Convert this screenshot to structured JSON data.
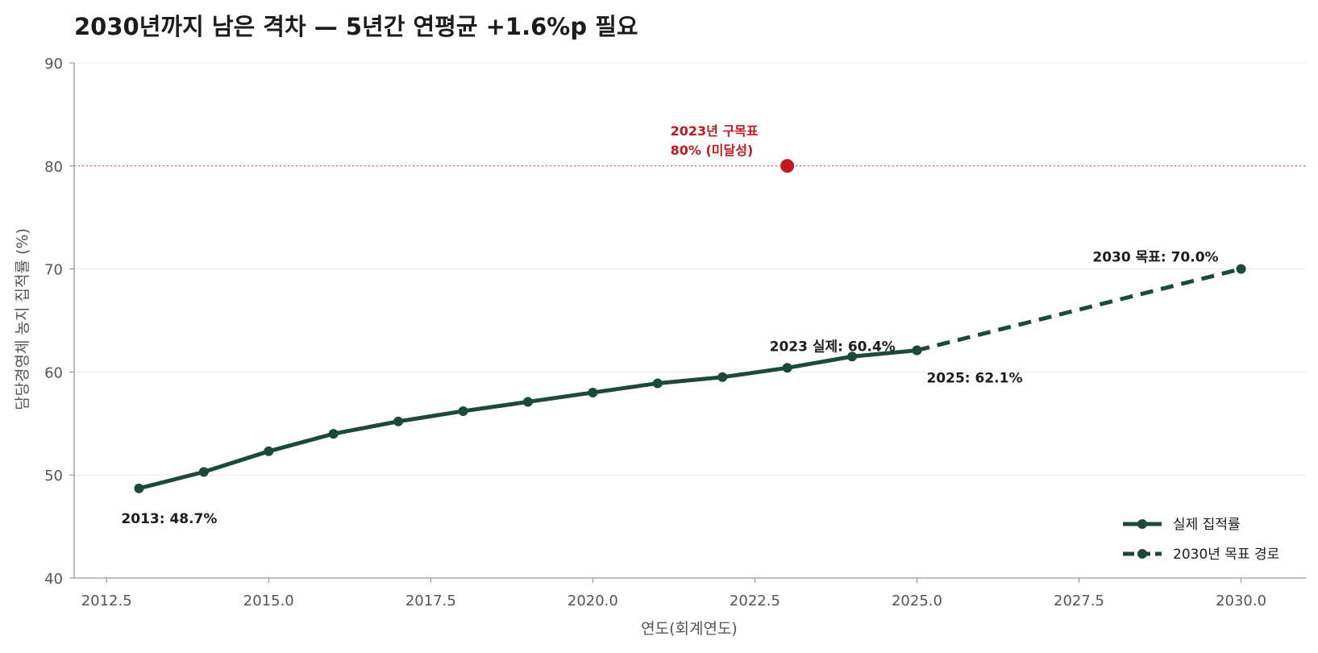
{
  "chart_data": {
    "type": "line",
    "title": "2030년까지 남은 격차 — 5년간 연평균 +1.6%p 필요",
    "xlabel": "연도(회계연도)",
    "ylabel": "담당경영체 농지 집적률 (%)",
    "xlim": [
      2012.0,
      2031.0
    ],
    "ylim": [
      40,
      90
    ],
    "xticks": [
      2012.5,
      2015.0,
      2017.5,
      2020.0,
      2022.5,
      2025.0,
      2027.5,
      2030.0
    ],
    "xtick_labels": [
      "2012.5",
      "2015.0",
      "2017.5",
      "2020.0",
      "2022.5",
      "2025.0",
      "2027.5",
      "2030.0"
    ],
    "yticks": [
      40,
      50,
      60,
      70,
      80,
      90
    ],
    "ytick_labels": [
      "40",
      "50",
      "60",
      "70",
      "80",
      "90"
    ],
    "grid": "horizontal",
    "legend_position": "bottom-right",
    "series": [
      {
        "name": "실제 집적률",
        "style": "solid",
        "color": "#1b4a3c",
        "x": [
          2013,
          2014,
          2015,
          2016,
          2017,
          2018,
          2019,
          2020,
          2021,
          2022,
          2023,
          2024,
          2025
        ],
        "y": [
          48.7,
          50.3,
          52.3,
          54.0,
          55.2,
          56.2,
          57.1,
          58.0,
          58.9,
          59.5,
          60.4,
          61.5,
          62.1
        ]
      },
      {
        "name": "2030년 목표 경로",
        "style": "dashed",
        "color": "#1b4a3c",
        "x": [
          2025,
          2030
        ],
        "y": [
          62.1,
          70.0
        ]
      }
    ],
    "reference_line": {
      "y": 80,
      "color": "#d9534f",
      "style": "dotted"
    },
    "highlight_point": {
      "x": 2023,
      "y": 80,
      "color": "#c0191f"
    },
    "annotations": [
      {
        "text": "2013: 48.7%",
        "x": 2013,
        "y": 48.7
      },
      {
        "text": "2023 실제: 60.4%",
        "x": 2023,
        "y": 60.4
      },
      {
        "text": "2025: 62.1%",
        "x": 2025,
        "y": 62.1
      },
      {
        "text": "2030 목표: 70.0%",
        "x": 2030,
        "y": 70.0
      }
    ],
    "red_annotation": {
      "line1": "2023년 구목표",
      "line2": "80% (미달성)",
      "color": "#c0191f"
    }
  }
}
